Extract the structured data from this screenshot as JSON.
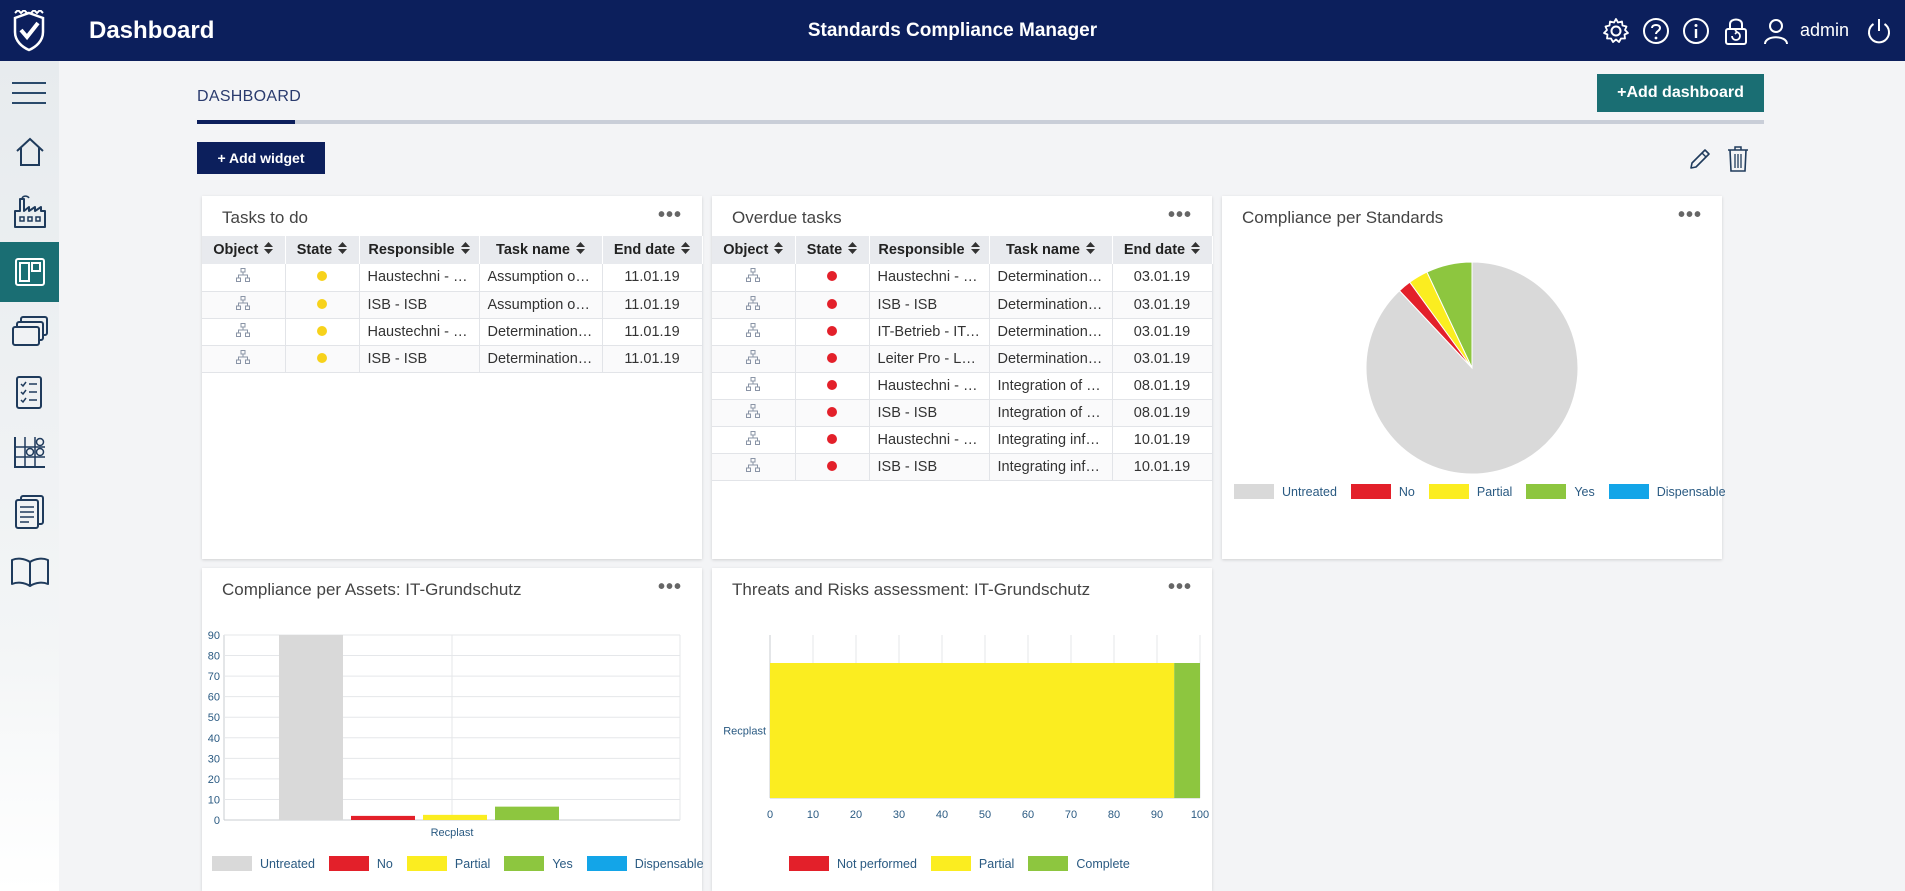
{
  "header": {
    "page_title": "Dashboard",
    "app_title": "Standards Compliance Manager",
    "user": "admin",
    "icons": [
      "gear-icon",
      "help-icon",
      "info-icon",
      "lock-icon",
      "user-icon",
      "power-icon"
    ]
  },
  "sidebar": {
    "items": [
      "home-icon",
      "factory-icon",
      "dashboard-icon",
      "layers-icon",
      "checklist-icon",
      "matrix-icon",
      "report-icon",
      "book-icon"
    ],
    "active": "dashboard-icon"
  },
  "tabs": {
    "active_label": "DASHBOARD"
  },
  "toolbar": {
    "add_dashboard": "+Add dashboard",
    "add_widget": "+ Add widget"
  },
  "colors": {
    "untreated": "#d9d9d9",
    "no": "#e3202a",
    "partial": "#fbed20",
    "yes": "#8dc63f",
    "dispensable": "#13a5e8",
    "state_yellow": "#f7d21b",
    "state_red": "#e3202a",
    "navy": "#0c1f5c",
    "teal": "#1a6e73"
  },
  "tasks_todo": {
    "title": "Tasks to do",
    "menu": "•••",
    "columns": [
      "Object",
      "State",
      "Responsible",
      "Task name",
      "End date"
    ],
    "rows": [
      {
        "responsible": "Haustechni - Haustechnik",
        "task": "Assumption of responsibility",
        "end": "11.01.19",
        "state": "yellow"
      },
      {
        "responsible": "ISB - ISB",
        "task": "Assumption of responsibility",
        "end": "11.01.19",
        "state": "yellow"
      },
      {
        "responsible": "Haustechni - Haustechnik",
        "task": "Determination of requirements",
        "end": "11.01.19",
        "state": "yellow"
      },
      {
        "responsible": "ISB - ISB",
        "task": "Determination of requirements",
        "end": "11.01.19",
        "state": "yellow"
      }
    ]
  },
  "overdue_tasks": {
    "title": "Overdue tasks",
    "menu": "•••",
    "columns": [
      "Object",
      "State",
      "Responsible",
      "Task name",
      "End date"
    ],
    "rows": [
      {
        "responsible": "Haustechni - Haustechnik",
        "task": "Determination of requirements",
        "end": "03.01.19",
        "state": "red"
      },
      {
        "responsible": "ISB - ISB",
        "task": "Determination of requirements",
        "end": "03.01.19",
        "state": "red"
      },
      {
        "responsible": "IT-Betrieb - IT-Betrieb",
        "task": "Determination of requirements",
        "end": "03.01.19",
        "state": "red"
      },
      {
        "responsible": "Leiter Pro - Leiter Produktion",
        "task": "Determination of requirements",
        "end": "03.01.19",
        "state": "red"
      },
      {
        "responsible": "Haustechni - Haustechnik",
        "task": "Integration of security",
        "end": "08.01.19",
        "state": "red"
      },
      {
        "responsible": "ISB - ISB",
        "task": "Integration of security",
        "end": "08.01.19",
        "state": "red"
      },
      {
        "responsible": "Haustechni - Haustechnik",
        "task": "Integrating information",
        "end": "10.01.19",
        "state": "red"
      },
      {
        "responsible": "ISB - ISB",
        "task": "Integrating information",
        "end": "10.01.19",
        "state": "red"
      }
    ]
  },
  "compliance_standards": {
    "title": "Compliance per Standards",
    "menu": "•••",
    "legend": [
      "Untreated",
      "No",
      "Partial",
      "Yes",
      "Dispensable"
    ]
  },
  "compliance_assets": {
    "title": "Compliance per Assets: IT-Grundschutz",
    "menu": "•••",
    "legend": [
      "Untreated",
      "No",
      "Partial",
      "Yes",
      "Dispensable"
    ]
  },
  "threats_risks": {
    "title": "Threats and Risks assessment: IT-Grundschutz",
    "menu": "•••",
    "legend": [
      "Not performed",
      "Partial",
      "Complete"
    ]
  },
  "chart_data": [
    {
      "type": "pie",
      "title": "Compliance per Standards",
      "categories": [
        "Untreated",
        "No",
        "Partial",
        "Yes",
        "Dispensable"
      ],
      "values": [
        88,
        2,
        3,
        7,
        0
      ],
      "legend": "bottom"
    },
    {
      "type": "bar",
      "title": "Compliance per Assets: IT-Grundschutz",
      "categories": [
        "Recplast"
      ],
      "series": [
        {
          "name": "Untreated",
          "values": [
            90
          ]
        },
        {
          "name": "No",
          "values": [
            2
          ]
        },
        {
          "name": "Partial",
          "values": [
            2.5
          ]
        },
        {
          "name": "Yes",
          "values": [
            6.5
          ]
        },
        {
          "name": "Dispensable",
          "values": [
            0
          ]
        }
      ],
      "ylim": [
        0,
        90
      ],
      "yticks": [
        0,
        10,
        20,
        30,
        40,
        50,
        60,
        70,
        80,
        90
      ],
      "grid": true,
      "legend": "bottom"
    },
    {
      "type": "bar",
      "orientation": "horizontal",
      "stacked": true,
      "title": "Threats and Risks assessment: IT-Grundschutz",
      "categories": [
        "Recplast"
      ],
      "series": [
        {
          "name": "Not performed",
          "values": [
            0
          ]
        },
        {
          "name": "Partial",
          "values": [
            94
          ]
        },
        {
          "name": "Complete",
          "values": [
            6
          ]
        }
      ],
      "xlim": [
        0,
        100
      ],
      "xticks": [
        0,
        10,
        20,
        30,
        40,
        50,
        60,
        70,
        80,
        90,
        100
      ],
      "grid": true,
      "legend": "bottom"
    }
  ]
}
